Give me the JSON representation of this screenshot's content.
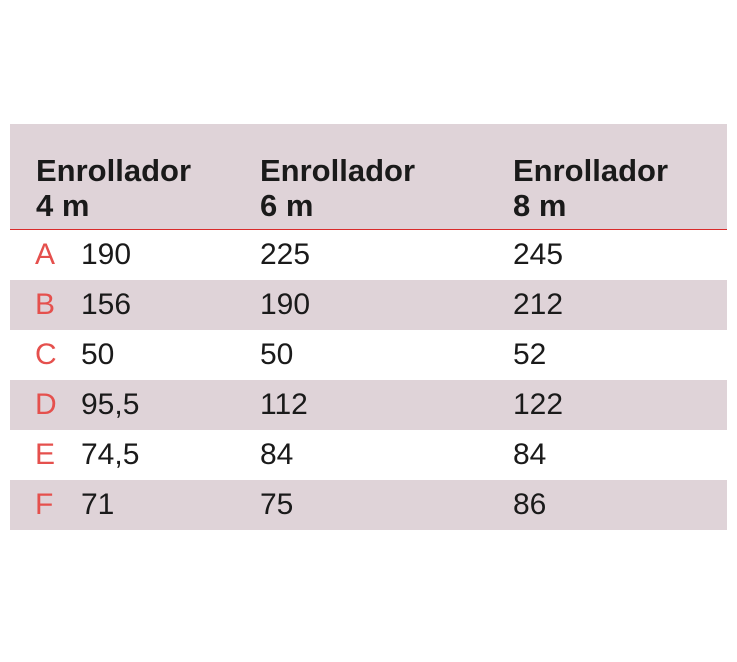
{
  "table": {
    "headers": [
      {
        "line1": "Enrollador",
        "line2": "4 m"
      },
      {
        "line1": "Enrollador",
        "line2": "6 m"
      },
      {
        "line1": "Enrollador",
        "line2": "8 m"
      }
    ],
    "rows": [
      {
        "label": "A",
        "values": [
          "190",
          "225",
          "245"
        ]
      },
      {
        "label": "B",
        "values": [
          "156",
          "190",
          "212"
        ]
      },
      {
        "label": "C",
        "values": [
          "50",
          "50",
          "52"
        ]
      },
      {
        "label": "D",
        "values": [
          "95,5",
          "112",
          "122"
        ]
      },
      {
        "label": "E",
        "values": [
          "74,5",
          "84",
          "84"
        ]
      },
      {
        "label": "F",
        "values": [
          "71",
          "75",
          "86"
        ]
      }
    ],
    "colors": {
      "shade": "#dfd3d8",
      "accent": "#e5504d",
      "rule": "#d92b2b",
      "text": "#1a1a1a"
    }
  }
}
